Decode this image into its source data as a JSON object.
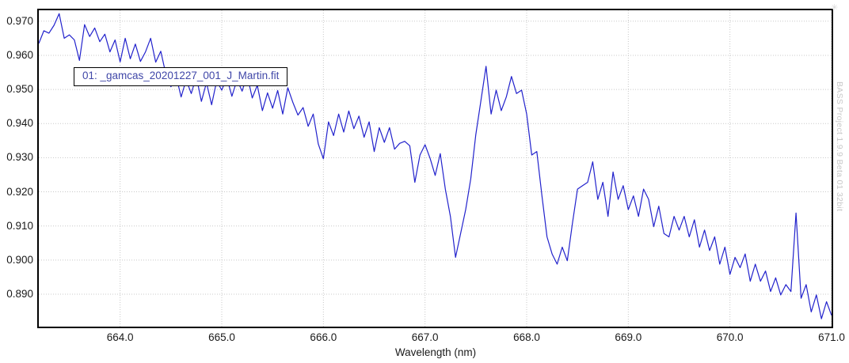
{
  "chart_data": {
    "type": "line",
    "title": "",
    "xlabel": "Wavelength (nm)",
    "ylabel": "",
    "xlim": [
      663.2,
      671.0
    ],
    "ylim": [
      0.8805,
      0.9732
    ],
    "x_tick_labels": [
      "664.0",
      "665.0",
      "666.0",
      "667.0",
      "668.0",
      "669.0",
      "670.0",
      "671.0"
    ],
    "y_tick_labels": [
      "0.970",
      "0.960",
      "0.950",
      "0.940",
      "0.930",
      "0.920",
      "0.910",
      "0.900",
      "0.890"
    ],
    "grid": "dotted",
    "legend_position": "floating-box-top-left",
    "line_color": "#2222cc",
    "grid_color": "#c8c8c8",
    "series": [
      {
        "name": "01: _gamcas_20201227_001_J_Martin.fit",
        "x_start": 663.2,
        "x_step": 0.05,
        "values": [
          0.9635,
          0.9672,
          0.9665,
          0.9688,
          0.9722,
          0.965,
          0.966,
          0.9645,
          0.9585,
          0.969,
          0.9655,
          0.968,
          0.964,
          0.9662,
          0.961,
          0.9645,
          0.9581,
          0.965,
          0.959,
          0.9633,
          0.9582,
          0.961,
          0.965,
          0.958,
          0.9612,
          0.9545,
          0.9508,
          0.954,
          0.9478,
          0.9528,
          0.9488,
          0.9538,
          0.9465,
          0.952,
          0.9455,
          0.9525,
          0.9498,
          0.9535,
          0.948,
          0.9528,
          0.9495,
          0.9542,
          0.9475,
          0.9512,
          0.9438,
          0.949,
          0.9445,
          0.9497,
          0.9428,
          0.9505,
          0.9462,
          0.9425,
          0.9447,
          0.9392,
          0.9428,
          0.934,
          0.9297,
          0.9405,
          0.9365,
          0.9428,
          0.9375,
          0.9437,
          0.9385,
          0.9422,
          0.936,
          0.9405,
          0.9318,
          0.9388,
          0.9345,
          0.9388,
          0.9325,
          0.9342,
          0.9348,
          0.9335,
          0.9228,
          0.9308,
          0.9338,
          0.9298,
          0.9248,
          0.9312,
          0.9208,
          0.9128,
          0.9008,
          0.9078,
          0.9148,
          0.9238,
          0.9368,
          0.9468,
          0.9568,
          0.9428,
          0.9498,
          0.9438,
          0.9478,
          0.9538,
          0.9488,
          0.9498,
          0.9428,
          0.9308,
          0.9318,
          0.9188,
          0.9068,
          0.9018,
          0.8988,
          0.9038,
          0.8998,
          0.9108,
          0.9208,
          0.9218,
          0.9228,
          0.9288,
          0.9178,
          0.9228,
          0.9128,
          0.9258,
          0.9178,
          0.9218,
          0.9148,
          0.9188,
          0.9128,
          0.9208,
          0.9178,
          0.9098,
          0.9158,
          0.9078,
          0.9068,
          0.9128,
          0.9088,
          0.9128,
          0.9068,
          0.9118,
          0.9038,
          0.9088,
          0.9028,
          0.9068,
          0.8988,
          0.9038,
          0.8958,
          0.9008,
          0.8978,
          0.9018,
          0.8938,
          0.8988,
          0.8938,
          0.8968,
          0.8908,
          0.8948,
          0.8898,
          0.8928,
          0.8908,
          0.9138,
          0.8888,
          0.8928,
          0.8848,
          0.8898,
          0.8828,
          0.8878,
          0.8838
        ]
      }
    ]
  },
  "watermark": {
    "text": "BASS Project 1.9.9 Beta 01 32bit"
  },
  "decor": {
    "corner_mark": "✳"
  }
}
